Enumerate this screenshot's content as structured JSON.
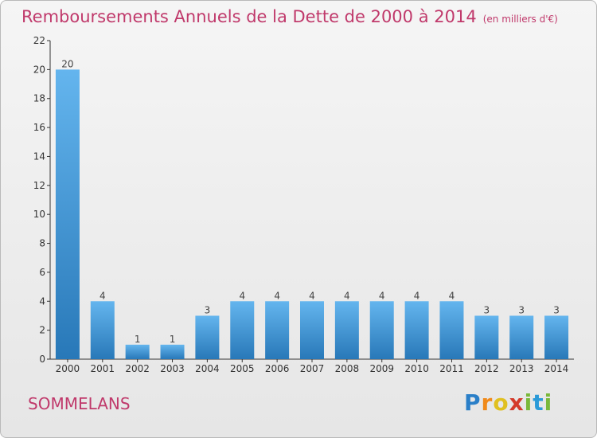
{
  "title": "Remboursements Annuels de la Dette de 2000 à 2014",
  "unit": "(en milliers d'€)",
  "commune": "SOMMELANS",
  "logo": {
    "text": "Proxiti",
    "letters": [
      "P",
      "r",
      "o",
      "x",
      "i",
      "t",
      "i"
    ],
    "colors": [
      "#2a7fc8",
      "#f08a1a",
      "#e0c020",
      "#d43a2a",
      "#7ab83a",
      "#2a9ad8",
      "#7ab83a"
    ]
  },
  "colors": {
    "bar_top": "#64b5ee",
    "bar_bottom": "#2878b8",
    "accent": "#c0396b"
  },
  "chart_data": {
    "type": "bar",
    "title": "Remboursements Annuels de la Dette de 2000 à 2014",
    "xlabel": "",
    "ylabel": "",
    "categories": [
      "2000",
      "2001",
      "2002",
      "2003",
      "2004",
      "2005",
      "2006",
      "2007",
      "2008",
      "2009",
      "2010",
      "2011",
      "2012",
      "2013",
      "2014"
    ],
    "values": [
      20,
      4,
      1,
      1,
      3,
      4,
      4,
      4,
      4,
      4,
      4,
      4,
      3,
      3,
      3
    ],
    "ylim": [
      0,
      22
    ],
    "yticks": [
      0,
      2,
      4,
      6,
      8,
      10,
      12,
      14,
      16,
      18,
      20,
      22
    ],
    "grid": false,
    "legend": "none"
  }
}
